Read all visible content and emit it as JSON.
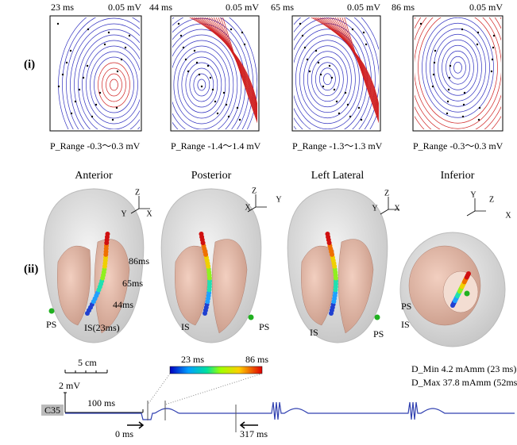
{
  "row_labels": [
    "(i)",
    "(ii)"
  ],
  "maps": [
    {
      "time": "23 ms",
      "scale": "0.05 mV",
      "range": "P_Range  -0.3～0.3 mV"
    },
    {
      "time": "44 ms",
      "scale": "0.05 mV",
      "range": "P_Range  -1.4～1.4 mV"
    },
    {
      "time": "65 ms",
      "scale": "0.05 mV",
      "range": "P_Range  -1.3～1.3 mV"
    },
    {
      "time": "86 ms",
      "scale": "0.05 mV",
      "range": "P_Range  -0.3～0.3 mV"
    }
  ],
  "views": [
    {
      "title": "Anterior",
      "axes": [
        "Z",
        "Y",
        "X"
      ],
      "labels": [
        "86ms",
        "65ms",
        "44ms",
        "IS(23ms)",
        "PS"
      ]
    },
    {
      "title": "Posterior",
      "axes": [
        "Z",
        "X",
        "Y"
      ],
      "labels": [
        "IS",
        "PS"
      ]
    },
    {
      "title": "Left Lateral",
      "axes": [
        "Z",
        "Y",
        "X"
      ],
      "labels": [
        "IS",
        "PS"
      ]
    },
    {
      "title": "Inferior",
      "axes": [
        "Y",
        "Z",
        "X"
      ],
      "labels": [
        "PS",
        "IS"
      ]
    }
  ],
  "trace": {
    "length_scale": "5 cm",
    "amp_scale": "2 mV",
    "time_scale": "100 ms",
    "channel": "C35",
    "colorbar": [
      "23 ms",
      "86 ms"
    ],
    "d_min": "D_Min  4.2 mAmm (23 ms)",
    "d_max": "D_Max 37.8 mAmm (52ms)",
    "markers": [
      "0 ms",
      "317 ms"
    ]
  }
}
